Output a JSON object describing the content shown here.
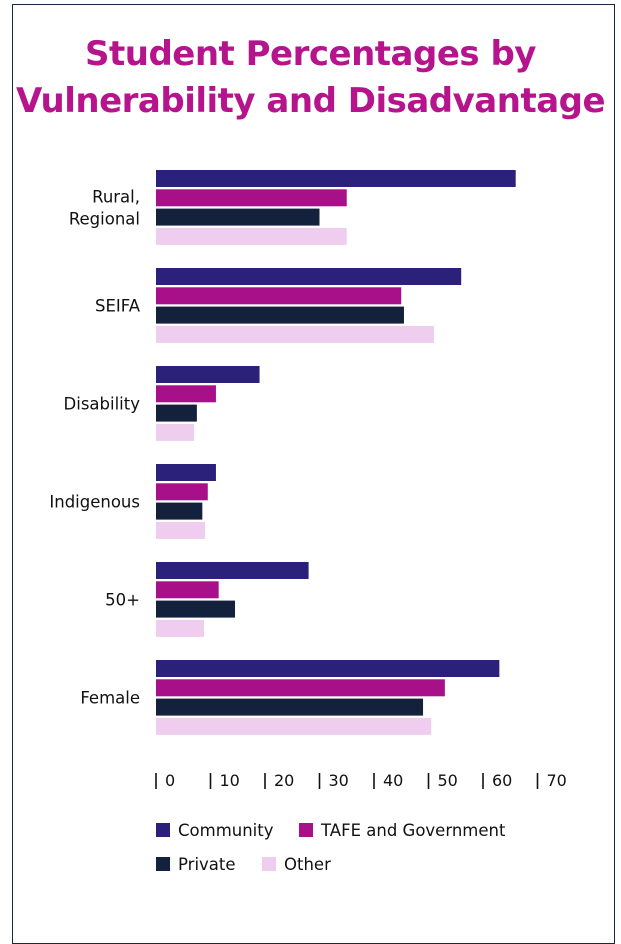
{
  "chart_data": {
    "type": "bar",
    "orientation": "horizontal",
    "title": [
      "Student Percentages by",
      "Vulnerability and Disadvantage"
    ],
    "categories": [
      [
        "Rural,",
        "Regional"
      ],
      [
        "SEIFA"
      ],
      [
        "Disability"
      ],
      [
        "Indigenous"
      ],
      [
        "50+"
      ],
      [
        "Female"
      ]
    ],
    "series": [
      {
        "name": "Community",
        "color": "#2b217a",
        "values": [
          66,
          56,
          19,
          11,
          28,
          63
        ]
      },
      {
        "name": "TAFE and Government",
        "color": "#a8108a",
        "values": [
          35,
          45,
          11,
          9.5,
          11.5,
          53
        ]
      },
      {
        "name": "Private",
        "color": "#14213d",
        "values": [
          30,
          45.5,
          7.5,
          8.5,
          14.5,
          49
        ]
      },
      {
        "name": "Other",
        "color": "#efcdef",
        "values": [
          35,
          51,
          7,
          9,
          8.8,
          50.5
        ]
      }
    ],
    "xticks": [
      "0",
      "10",
      "20",
      "30",
      "40",
      "50",
      "60",
      "70"
    ],
    "xlim": [
      0,
      70
    ],
    "legend_position": "bottom"
  }
}
